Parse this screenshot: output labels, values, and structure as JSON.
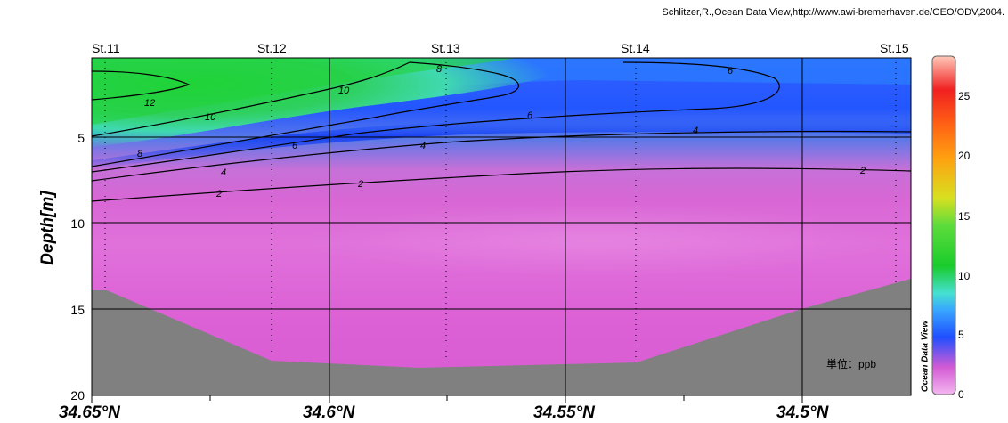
{
  "credit": "Schlitzer,R.,Ocean Data View,http://www.awi-bremerhaven.de/GEO/ODV,2004.",
  "unit_label": "単位：ppb",
  "colorbar_name": "Ocean Data View",
  "colorbar_ticks": [
    "0",
    "5",
    "10",
    "15",
    "20",
    "25"
  ],
  "colors": {
    "land": "#808080",
    "low": "#dd55d5",
    "mid": "#1f57ff",
    "high": "#22cc33"
  },
  "chart_data": {
    "type": "heatmap",
    "title": "",
    "xlabel": "",
    "ylabel": "Depth[m]",
    "x_ticks": [
      "34.65°N",
      "34.6°N",
      "34.55°N",
      "34.5°N"
    ],
    "y_ticks": [
      "5",
      "10",
      "15",
      "20"
    ],
    "ylim": [
      0,
      20
    ],
    "y_inverted": true,
    "stations": [
      "St.11",
      "St.12",
      "St.13",
      "St.14",
      "St.15"
    ],
    "colorbar_range": [
      0,
      28
    ],
    "contour_levels": [
      2,
      4,
      6,
      8,
      10,
      12
    ],
    "contour_labels": [
      "12",
      "10",
      "10",
      "8",
      "8",
      "6",
      "6",
      "6",
      "4",
      "4",
      "4",
      "2",
      "2",
      "2"
    ],
    "surface_max_by_station": [
      12.5,
      11.5,
      8.5,
      6.5,
      5.5
    ]
  }
}
